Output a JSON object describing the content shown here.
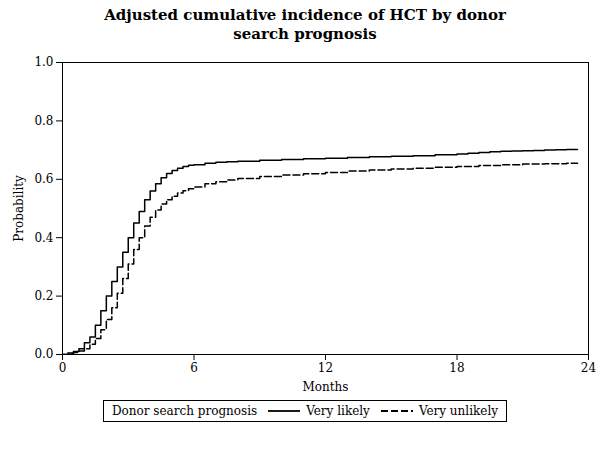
{
  "chart_data": {
    "type": "line",
    "title": "Adjusted cumulative incidence of HCT by donor\nsearch prognosis",
    "xlabel": "Months",
    "ylabel": "Probability",
    "xlim": [
      0,
      24
    ],
    "ylim": [
      0,
      1
    ],
    "xticks": [
      0,
      6,
      12,
      18,
      24
    ],
    "yticks": [
      {
        "value": 0,
        "label": "0.0"
      },
      0.2,
      0.4,
      0.6,
      0.8,
      {
        "value": 1,
        "label": "1.0"
      }
    ],
    "grid": false,
    "legend": "bottom",
    "legend_title": "Donor search prognosis",
    "series": [
      {
        "name": "Very likely",
        "color": "#000000",
        "line_style": "solid",
        "x": [
          0,
          0.25,
          0.5,
          0.75,
          1.0,
          1.25,
          1.5,
          1.75,
          2.0,
          2.25,
          2.5,
          2.75,
          3.0,
          3.25,
          3.5,
          3.75,
          4.0,
          4.25,
          4.5,
          4.75,
          5.0,
          5.25,
          5.5,
          5.75,
          6.0,
          6.5,
          7.0,
          7.5,
          8.0,
          9.0,
          10.0,
          11.0,
          12.0,
          13.0,
          14.0,
          15.0,
          16.0,
          17.0,
          18.0,
          18.5,
          19.0,
          19.5,
          20.0,
          20.5,
          21.0,
          21.5,
          22.0,
          22.5,
          23.0,
          23.5
        ],
        "values": [
          0.0,
          0.005,
          0.01,
          0.02,
          0.04,
          0.06,
          0.1,
          0.15,
          0.2,
          0.25,
          0.3,
          0.35,
          0.4,
          0.45,
          0.49,
          0.53,
          0.56,
          0.585,
          0.605,
          0.62,
          0.63,
          0.638,
          0.644,
          0.648,
          0.65,
          0.655,
          0.658,
          0.66,
          0.662,
          0.665,
          0.668,
          0.67,
          0.672,
          0.675,
          0.677,
          0.679,
          0.681,
          0.684,
          0.687,
          0.689,
          0.692,
          0.694,
          0.696,
          0.697,
          0.698,
          0.699,
          0.7,
          0.701,
          0.702,
          0.702
        ]
      },
      {
        "name": "Very unlikely",
        "color": "#000000",
        "line_style": "dashed",
        "x": [
          0,
          0.25,
          0.5,
          0.75,
          1.0,
          1.25,
          1.5,
          1.75,
          2.0,
          2.25,
          2.5,
          2.75,
          3.0,
          3.25,
          3.5,
          3.75,
          4.0,
          4.25,
          4.5,
          4.75,
          5.0,
          5.25,
          5.5,
          5.75,
          6.0,
          6.5,
          7.0,
          7.5,
          8.0,
          9.0,
          10.0,
          11.0,
          12.0,
          13.0,
          14.0,
          15.0,
          16.0,
          17.0,
          18.0,
          19.0,
          20.0,
          21.0,
          22.0,
          23.0,
          23.5
        ],
        "values": [
          0.0,
          0.003,
          0.007,
          0.012,
          0.02,
          0.035,
          0.055,
          0.085,
          0.12,
          0.16,
          0.21,
          0.26,
          0.31,
          0.36,
          0.4,
          0.44,
          0.47,
          0.495,
          0.515,
          0.53,
          0.542,
          0.553,
          0.561,
          0.568,
          0.574,
          0.585,
          0.592,
          0.598,
          0.603,
          0.61,
          0.615,
          0.619,
          0.623,
          0.628,
          0.632,
          0.635,
          0.638,
          0.641,
          0.644,
          0.647,
          0.65,
          0.652,
          0.653,
          0.655,
          0.655
        ]
      }
    ]
  }
}
